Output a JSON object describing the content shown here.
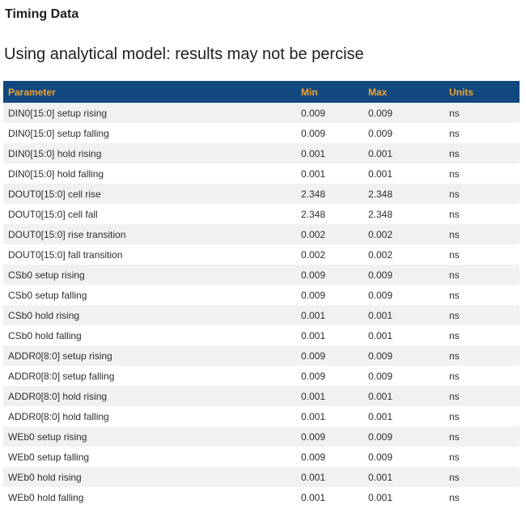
{
  "page": {
    "title": "Timing Data",
    "subtitle": "Using analytical model: results may not be percise"
  },
  "table": {
    "columns": [
      "Parameter",
      "Min",
      "Max",
      "Units"
    ],
    "rows": [
      {
        "parameter": "DIN0[15:0] setup rising",
        "min": "0.009",
        "max": "0.009",
        "units": "ns"
      },
      {
        "parameter": "DIN0[15:0] setup falling",
        "min": "0.009",
        "max": "0.009",
        "units": "ns"
      },
      {
        "parameter": "DIN0[15:0] hold rising",
        "min": "0.001",
        "max": "0.001",
        "units": "ns"
      },
      {
        "parameter": "DIN0[15:0] hold falling",
        "min": "0.001",
        "max": "0.001",
        "units": "ns"
      },
      {
        "parameter": "DOUT0[15:0] cell rise",
        "min": "2.348",
        "max": "2.348",
        "units": "ns"
      },
      {
        "parameter": "DOUT0[15:0] cell fall",
        "min": "2.348",
        "max": "2.348",
        "units": "ns"
      },
      {
        "parameter": "DOUT0[15:0] rise transition",
        "min": "0.002",
        "max": "0.002",
        "units": "ns"
      },
      {
        "parameter": "DOUT0[15:0] fall transition",
        "min": "0.002",
        "max": "0.002",
        "units": "ns"
      },
      {
        "parameter": "CSb0 setup rising",
        "min": "0.009",
        "max": "0.009",
        "units": "ns"
      },
      {
        "parameter": "CSb0 setup falling",
        "min": "0.009",
        "max": "0.009",
        "units": "ns"
      },
      {
        "parameter": "CSb0 hold rising",
        "min": "0.001",
        "max": "0.001",
        "units": "ns"
      },
      {
        "parameter": "CSb0 hold falling",
        "min": "0.001",
        "max": "0.001",
        "units": "ns"
      },
      {
        "parameter": "ADDR0[8:0] setup rising",
        "min": "0.009",
        "max": "0.009",
        "units": "ns"
      },
      {
        "parameter": "ADDR0[8:0] setup falling",
        "min": "0.009",
        "max": "0.009",
        "units": "ns"
      },
      {
        "parameter": "ADDR0[8:0] hold rising",
        "min": "0.001",
        "max": "0.001",
        "units": "ns"
      },
      {
        "parameter": "ADDR0[8:0] hold falling",
        "min": "0.001",
        "max": "0.001",
        "units": "ns"
      },
      {
        "parameter": "WEb0 setup rising",
        "min": "0.009",
        "max": "0.009",
        "units": "ns"
      },
      {
        "parameter": "WEb0 setup falling",
        "min": "0.009",
        "max": "0.009",
        "units": "ns"
      },
      {
        "parameter": "WEb0 hold rising",
        "min": "0.001",
        "max": "0.001",
        "units": "ns"
      },
      {
        "parameter": "WEb0 hold falling",
        "min": "0.001",
        "max": "0.001",
        "units": "ns"
      }
    ]
  },
  "colors": {
    "header_bg": "#11487F",
    "header_text": "#F0A432",
    "row_alt_bg": "#F0F1F1",
    "row_text": "#2D2D2D"
  }
}
